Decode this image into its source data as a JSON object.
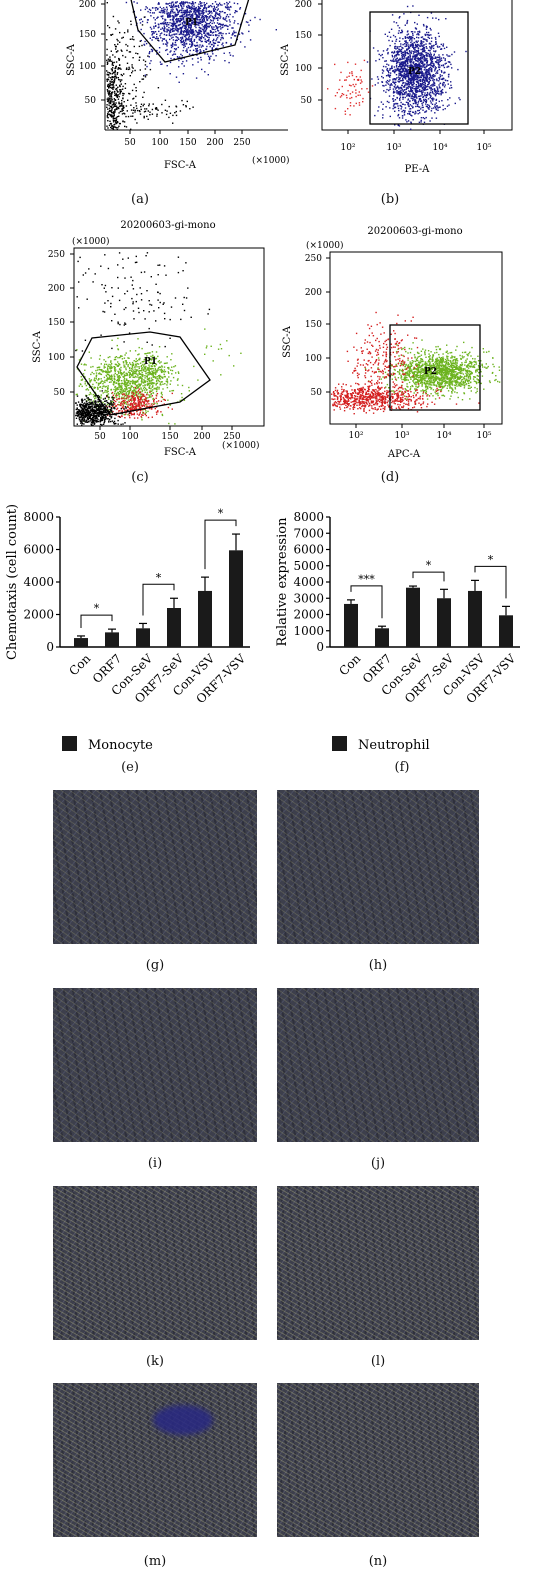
{
  "chart_data": [
    {
      "id": "a",
      "type": "scatter",
      "caption": "(a)",
      "xlabel": "FSC-A",
      "ylabel": "SSC-A",
      "x_unit": "(×1000)",
      "xticks": [
        "50",
        "100",
        "150",
        "200",
        "250"
      ],
      "yticks": [
        "50",
        "100",
        "150",
        "200"
      ],
      "gate_label": "P1",
      "series": [
        {
          "color": "#1a1a8c",
          "region": "gated cluster"
        },
        {
          "color": "#000000",
          "region": "debris"
        }
      ]
    },
    {
      "id": "b",
      "type": "scatter",
      "caption": "(b)",
      "xlabel": "PE-A",
      "ylabel": "SSC-A",
      "xticks": [
        "10²",
        "10³",
        "10⁴",
        "10⁵"
      ],
      "yticks": [
        "50",
        "100",
        "150",
        "200"
      ],
      "gate_label": "P2",
      "series": [
        {
          "color": "#1a1a8c",
          "region": "gated cluster"
        },
        {
          "color": "#e03030",
          "region": "negative"
        }
      ]
    },
    {
      "id": "c",
      "type": "scatter",
      "caption": "(c)",
      "title": "20200603-gi-mono",
      "xlabel": "FSC-A",
      "ylabel": "SSC-A",
      "x_unit": "(×1000)",
      "y_unit": "(×1000)",
      "xticks": [
        "50",
        "100",
        "150",
        "200",
        "250"
      ],
      "yticks": [
        "50",
        "100",
        "150",
        "200",
        "250"
      ],
      "gate_label": "P1",
      "series": [
        {
          "color": "#6cb31f",
          "region": "gated"
        },
        {
          "color": "#d42020",
          "region": "low"
        },
        {
          "color": "#000000",
          "region": "debris"
        }
      ]
    },
    {
      "id": "d",
      "type": "scatter",
      "caption": "(d)",
      "title": "20200603-gi-mono",
      "xlabel": "APC-A",
      "ylabel": "SSC-A",
      "y_unit": "(×1000)",
      "xticks": [
        "10²",
        "10³",
        "10⁴",
        "10⁵"
      ],
      "yticks": [
        "50",
        "100",
        "150",
        "200",
        "250"
      ],
      "gate_label": "P2",
      "series": [
        {
          "color": "#6cb31f",
          "region": "gated"
        },
        {
          "color": "#d42020",
          "region": "negative"
        }
      ]
    },
    {
      "id": "e",
      "type": "bar",
      "caption": "(e)",
      "ylabel": "Chemotaxis (cell count)",
      "ylim": [
        0,
        8000
      ],
      "yticks": [
        "0",
        "2000",
        "4000",
        "6000",
        "8000"
      ],
      "categories": [
        "Con",
        "ORF7",
        "Con-SeV",
        "ORF7-SeV",
        "Con-VSV",
        "ORF7-VSV"
      ],
      "series": [
        {
          "name": "Monocyte",
          "values": [
            550,
            900,
            1150,
            2400,
            3450,
            5950
          ],
          "errors": [
            130,
            200,
            300,
            600,
            850,
            1000
          ],
          "color": "#1a1a1a"
        }
      ],
      "significance": [
        {
          "pair": [
            0,
            1
          ],
          "label": "*"
        },
        {
          "pair": [
            2,
            3
          ],
          "label": "*"
        },
        {
          "pair": [
            4,
            5
          ],
          "label": "*"
        }
      ],
      "legend": "bottom-left"
    },
    {
      "id": "f",
      "type": "bar",
      "caption": "(f)",
      "ylabel": "Relative expression",
      "ylim": [
        0,
        8000
      ],
      "yticks": [
        "0",
        "1000",
        "2000",
        "3000",
        "4000",
        "5000",
        "6000",
        "7000",
        "8000"
      ],
      "categories": [
        "Con",
        "ORF7",
        "Con-SeV",
        "ORF7-SeV",
        "Con-VSV",
        "ORF7-VSV"
      ],
      "series": [
        {
          "name": "Neutrophil",
          "values": [
            2650,
            1150,
            3650,
            3000,
            3450,
            1950
          ],
          "errors": [
            250,
            130,
            100,
            550,
            650,
            550
          ],
          "color": "#1a1a1a"
        }
      ],
      "significance": [
        {
          "pair": [
            0,
            1
          ],
          "label": "***"
        },
        {
          "pair": [
            2,
            3
          ],
          "label": "*"
        },
        {
          "pair": [
            4,
            5
          ],
          "label": "*"
        }
      ],
      "legend": "bottom-left"
    }
  ],
  "micrographs": [
    {
      "caption": "(g)"
    },
    {
      "caption": "(h)"
    },
    {
      "caption": "(i)"
    },
    {
      "caption": "(j)"
    },
    {
      "caption": "(k)"
    },
    {
      "caption": "(l)"
    },
    {
      "caption": "(m)"
    },
    {
      "caption": "(n)"
    }
  ]
}
